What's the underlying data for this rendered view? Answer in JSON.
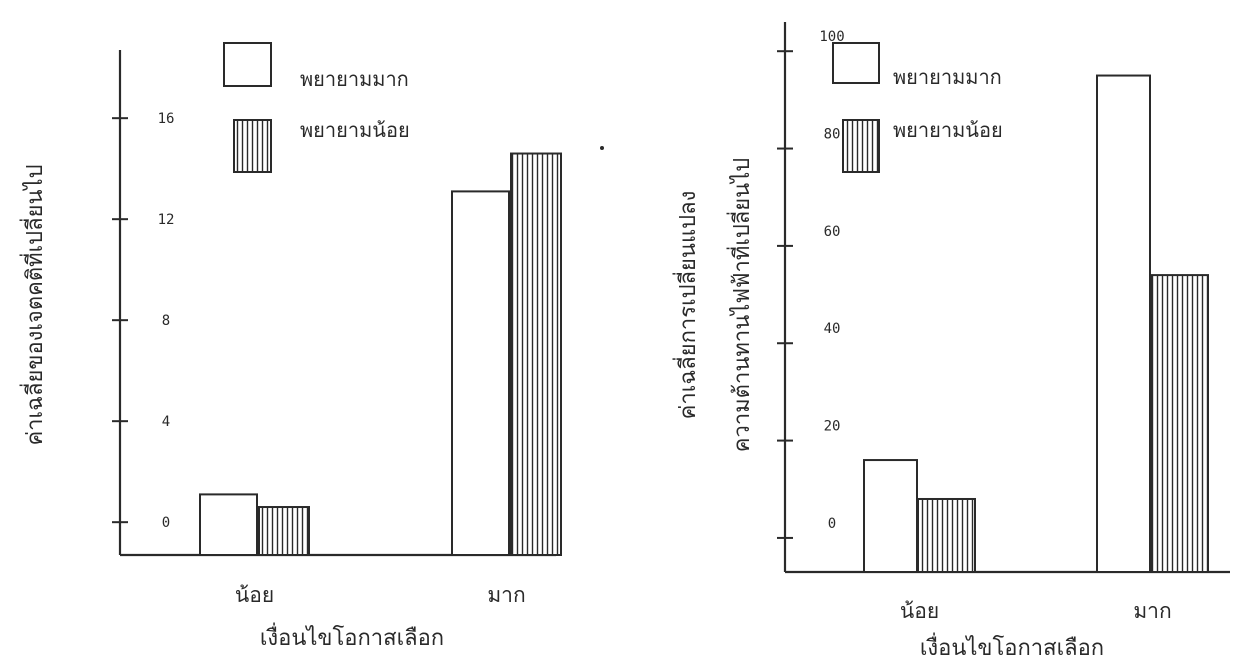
{
  "chart_data": [
    {
      "type": "bar",
      "categories": [
        "น้อย",
        "มาก"
      ],
      "xlabel": "เงื่อนไขโอกาสเลือก",
      "ylabel": "ค่าเฉลี่ยของเจตคติที่เปลี่ยนไป",
      "yticks": [
        "0",
        "4",
        "8",
        "12",
        "16"
      ],
      "ylim": [
        -1.3,
        18.7
      ],
      "series": [
        {
          "name": "พยายามมาก",
          "pattern": "hollow",
          "values": [
            1.1,
            13.1
          ]
        },
        {
          "name": "พยายามน้อย",
          "pattern": "vertical-hatch",
          "values": [
            0.6,
            14.6
          ]
        }
      ],
      "legend": "top-left",
      "grid": false
    },
    {
      "type": "bar",
      "categories": [
        "น้อย",
        "มาก"
      ],
      "xlabel": "เงื่อนไขโอกาสเลือก",
      "ylabel": [
        "ค่าเฉลี่ยการเปลี่ยนแปลง",
        "ความต้านทานไฟฟ้าที่เปลี่ยนไป"
      ],
      "yticks": [
        "0",
        "20",
        "40",
        "60",
        "80",
        "100"
      ],
      "ylim": [
        -7,
        106
      ],
      "series": [
        {
          "name": "พยายามมาก",
          "pattern": "hollow",
          "values": [
            16,
            95
          ]
        },
        {
          "name": "พยายามน้อย",
          "pattern": "vertical-hatch",
          "values": [
            8,
            54
          ]
        }
      ],
      "legend": "top-left",
      "grid": false
    }
  ],
  "style": {
    "ink": "#2a2a2a",
    "paper": "#ffffff"
  }
}
